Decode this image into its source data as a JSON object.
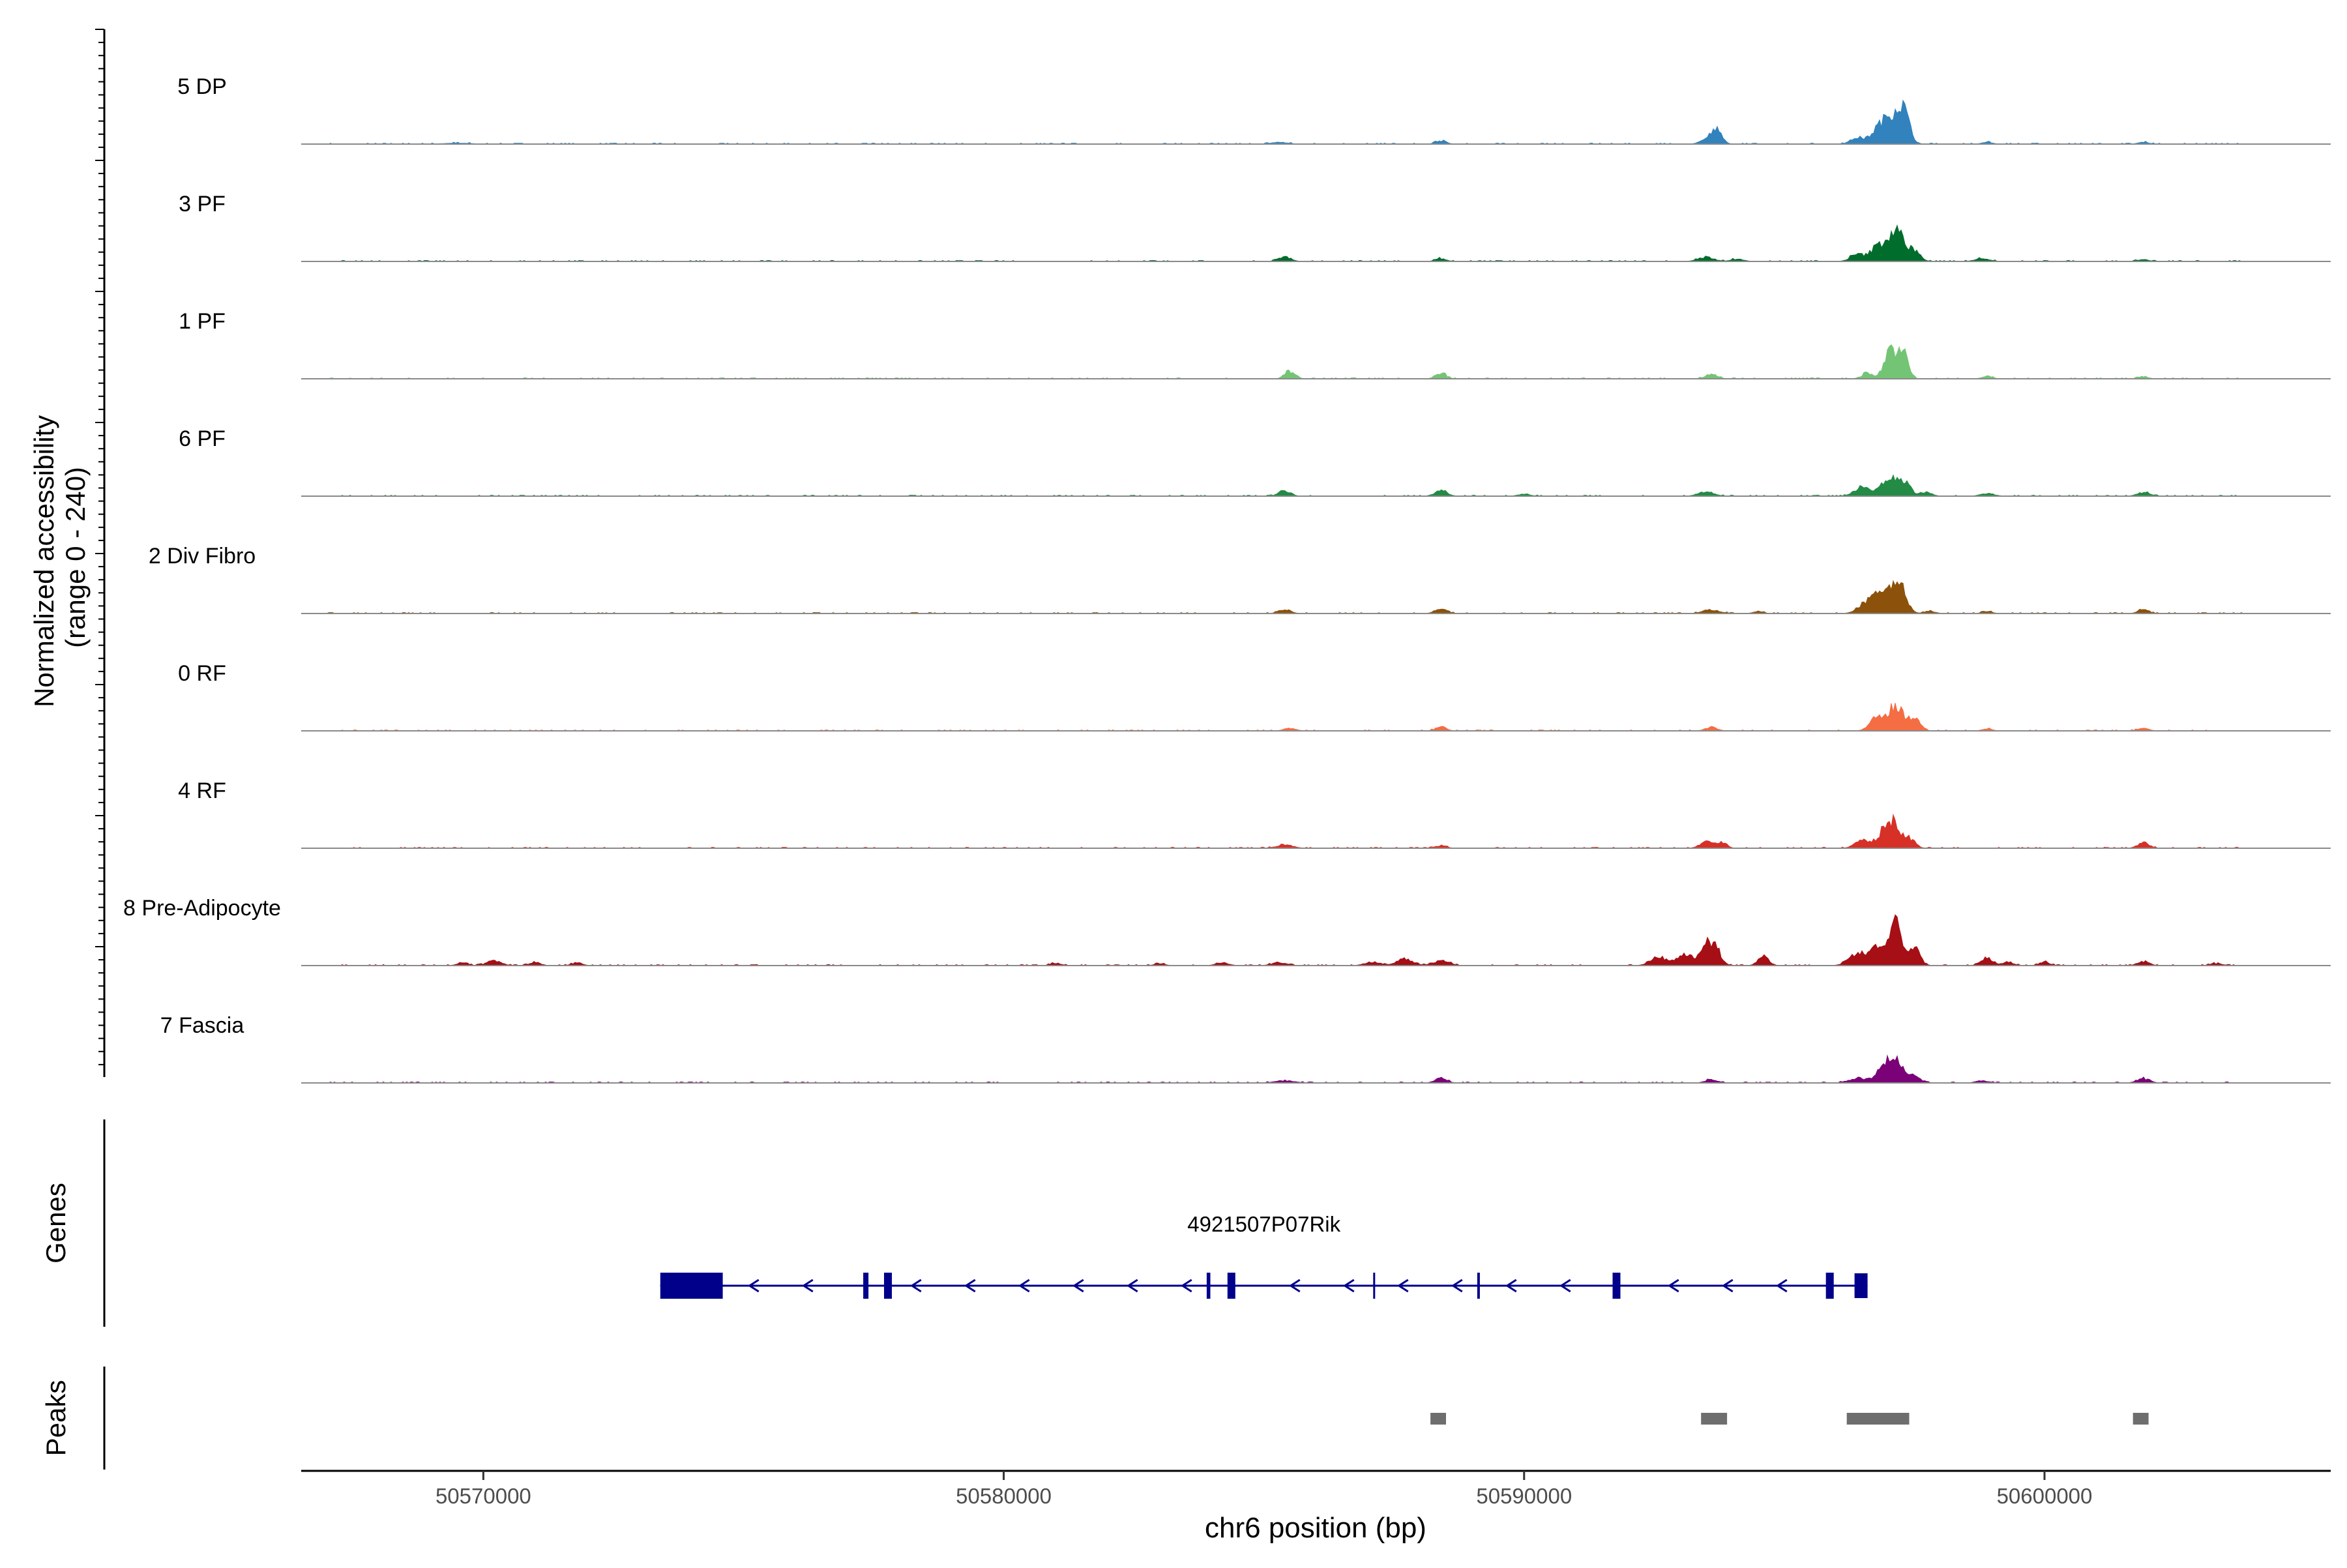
{
  "chart_data": {
    "type": "area",
    "panel_type": "coverage-track",
    "y_axis_label_line1": "Normalized accessibility",
    "y_axis_label_line2": "(range 0 - 240)",
    "y_range": [
      0,
      240
    ],
    "x_axis_label": "chr6 position (bp)",
    "x_range": [
      50566500,
      50605500
    ],
    "x_ticks": [
      50570000,
      50580000,
      50590000,
      50600000
    ],
    "x_tick_labels": [
      "50570000",
      "50580000",
      "50590000",
      "50600000"
    ],
    "tracks": [
      {
        "label": "5 DP",
        "color": "#3182BD",
        "peaks": [
          [
            50569500,
            2,
            250
          ],
          [
            50585300,
            4,
            150
          ],
          [
            50588400,
            7,
            100
          ],
          [
            50593500,
            9,
            120
          ],
          [
            50593700,
            28,
            100
          ],
          [
            50596400,
            14,
            120
          ],
          [
            50596800,
            28,
            140
          ],
          [
            50597100,
            60,
            170
          ],
          [
            50597300,
            50,
            110
          ],
          [
            50598900,
            4,
            100
          ],
          [
            50601900,
            4,
            100
          ]
        ]
      },
      {
        "label": "3 PF",
        "color": "#006D2C",
        "peaks": [
          [
            50585400,
            9,
            120
          ],
          [
            50588400,
            6,
            100
          ],
          [
            50593500,
            9,
            150
          ],
          [
            50594100,
            5,
            120
          ],
          [
            50596400,
            15,
            130
          ],
          [
            50596800,
            32,
            140
          ],
          [
            50597150,
            65,
            150
          ],
          [
            50597500,
            22,
            110
          ],
          [
            50598800,
            7,
            130
          ],
          [
            50601900,
            4,
            100
          ]
        ]
      },
      {
        "label": "1 PF",
        "color": "#74C476",
        "peaks": [
          [
            50585500,
            16,
            100
          ],
          [
            50588400,
            12,
            100
          ],
          [
            50593600,
            11,
            110
          ],
          [
            50596600,
            12,
            110
          ],
          [
            50597050,
            66,
            120
          ],
          [
            50597300,
            48,
            90
          ],
          [
            50598900,
            5,
            100
          ],
          [
            50601900,
            4,
            100
          ]
        ]
      },
      {
        "label": "6 PF",
        "color": "#238B45",
        "peaks": [
          [
            50585400,
            12,
            110
          ],
          [
            50588400,
            11,
            120
          ],
          [
            50590000,
            4,
            120
          ],
          [
            50593500,
            9,
            150
          ],
          [
            50596500,
            20,
            150
          ],
          [
            50597000,
            38,
            140
          ],
          [
            50597300,
            33,
            110
          ],
          [
            50597700,
            9,
            120
          ],
          [
            50598900,
            6,
            130
          ],
          [
            50601900,
            8,
            120
          ]
        ]
      },
      {
        "label": "2 Div Fibro",
        "color": "#8C510A",
        "peaks": [
          [
            50585400,
            9,
            110
          ],
          [
            50588400,
            10,
            110
          ],
          [
            50593600,
            8,
            160
          ],
          [
            50594500,
            4,
            100
          ],
          [
            50596600,
            26,
            160
          ],
          [
            50596900,
            42,
            130
          ],
          [
            50597200,
            68,
            130
          ],
          [
            50597800,
            5,
            100
          ],
          [
            50598900,
            4,
            100
          ],
          [
            50601900,
            8,
            100
          ]
        ]
      },
      {
        "label": "0 RF",
        "color": "#F46D43",
        "peaks": [
          [
            50585500,
            6,
            110
          ],
          [
            50588400,
            9,
            100
          ],
          [
            50593600,
            8,
            110
          ],
          [
            50596800,
            30,
            140
          ],
          [
            50597150,
            55,
            130
          ],
          [
            50597500,
            25,
            110
          ],
          [
            50598900,
            4,
            100
          ],
          [
            50601900,
            6,
            100
          ]
        ]
      },
      {
        "label": "4 RF",
        "color": "#D73027",
        "peaks": [
          [
            50585400,
            8,
            150
          ],
          [
            50588400,
            6,
            100
          ],
          [
            50593500,
            15,
            120
          ],
          [
            50593800,
            14,
            90
          ],
          [
            50596500,
            16,
            140
          ],
          [
            50596900,
            28,
            130
          ],
          [
            50597100,
            50,
            130
          ],
          [
            50597400,
            20,
            110
          ],
          [
            50601900,
            12,
            110
          ]
        ]
      },
      {
        "label": "8 Pre-Adipocyte",
        "color": "#A50F15",
        "peaks": [
          [
            50569600,
            6,
            100
          ],
          [
            50570200,
            10,
            140
          ],
          [
            50571000,
            6,
            110
          ],
          [
            50571800,
            6,
            100
          ],
          [
            50581000,
            5,
            100
          ],
          [
            50583000,
            4,
            100
          ],
          [
            50584200,
            6,
            120
          ],
          [
            50585300,
            6,
            150
          ],
          [
            50587100,
            8,
            150
          ],
          [
            50587700,
            15,
            150
          ],
          [
            50588400,
            10,
            160
          ],
          [
            50592600,
            18,
            160
          ],
          [
            50593100,
            26,
            140
          ],
          [
            50593500,
            48,
            110
          ],
          [
            50593700,
            30,
            100
          ],
          [
            50594600,
            22,
            100
          ],
          [
            50596400,
            26,
            160
          ],
          [
            50596800,
            46,
            140
          ],
          [
            50597150,
            88,
            110
          ],
          [
            50597500,
            36,
            110
          ],
          [
            50598900,
            15,
            120
          ],
          [
            50599300,
            8,
            100
          ],
          [
            50600000,
            7,
            100
          ],
          [
            50601900,
            9,
            110
          ],
          [
            50603300,
            4,
            120
          ]
        ]
      },
      {
        "label": "7 Fascia",
        "color": "#7A0177",
        "peaks": [
          [
            50585400,
            5,
            180
          ],
          [
            50588400,
            10,
            110
          ],
          [
            50593600,
            7,
            120
          ],
          [
            50596400,
            10,
            160
          ],
          [
            50596900,
            30,
            150
          ],
          [
            50597150,
            48,
            130
          ],
          [
            50597500,
            14,
            110
          ],
          [
            50598800,
            5,
            120
          ],
          [
            50601900,
            9,
            120
          ]
        ]
      }
    ],
    "genes_track_label": "Genes",
    "gene": {
      "name": "4921507P07Rik",
      "start": 50573400,
      "end": 50596600,
      "strand": "-",
      "color": "#00008B",
      "exons": [
        [
          50573400,
          50574600
        ],
        [
          50577300,
          50577400
        ],
        [
          50577700,
          50577850
        ],
        [
          50583900,
          50583970
        ],
        [
          50584300,
          50584450
        ],
        [
          50587100,
          50587130
        ],
        [
          50589100,
          50589150
        ],
        [
          50591700,
          50591850
        ],
        [
          50595800,
          50595950
        ],
        [
          50596350,
          50596600
        ]
      ]
    },
    "peaks_track_label": "Peaks",
    "peaks": [
      [
        50588200,
        50588500
      ],
      [
        50593400,
        50593900
      ],
      [
        50596200,
        50597400
      ],
      [
        50601700,
        50602000
      ]
    ],
    "peak_color": "#6e6e6e"
  }
}
